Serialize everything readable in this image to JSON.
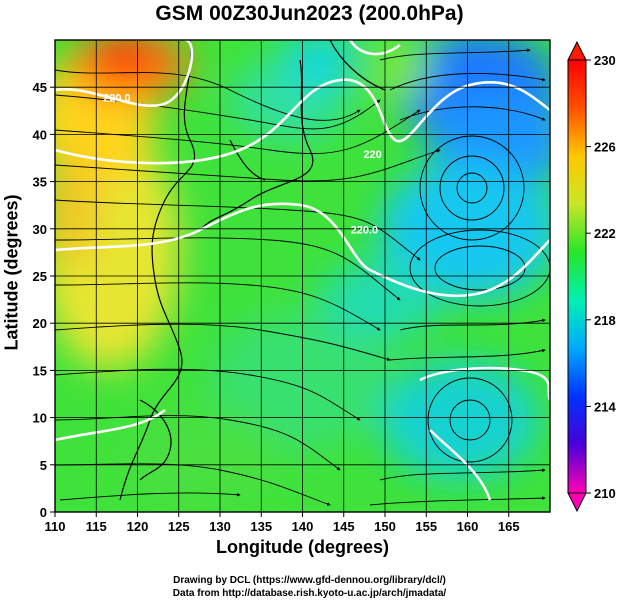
{
  "title": "GSM 00Z30Jun2023 (200.0hPa)",
  "credits": {
    "line1": "Drawing by DCL (https://www.gfd-dennou.org/library/dcl/)",
    "line2": "Data from http://database.rish.kyoto-u.ac.jp/arch/jmadata/"
  },
  "chart_data": {
    "type": "heatmap",
    "xlabel": "Longitude (degrees)",
    "ylabel": "Latitude  (degrees)",
    "xlim": [
      110,
      170
    ],
    "ylim": [
      0,
      50
    ],
    "x_ticks": [
      "110",
      "115",
      "120",
      "125",
      "130",
      "135",
      "140",
      "145",
      "150",
      "155",
      "160",
      "165"
    ],
    "y_ticks": [
      "0",
      "5",
      "10",
      "15",
      "20",
      "25",
      "30",
      "35",
      "40",
      "45"
    ],
    "grid": true,
    "colorbar": {
      "position": "right",
      "ticks": [
        "210",
        "214",
        "218",
        "222",
        "226",
        "230"
      ],
      "range": [
        210,
        230
      ],
      "colors": [
        "#ff00b4",
        "#4a00d8",
        "#0032ff",
        "#00a8ff",
        "#00f0b4",
        "#28e628",
        "#c8e628",
        "#ffc800",
        "#ff5000",
        "#ff0000"
      ]
    },
    "contour_labels": [
      {
        "text": "220.0",
        "lon": 117.5,
        "lat": 43.5
      },
      {
        "text": "220",
        "lon": 148.5,
        "lat": 37.5
      },
      {
        "text": "220.0",
        "lon": 147.5,
        "lat": 29.5
      }
    ],
    "features": {
      "warm_max": {
        "lon": 119,
        "lat": 49
      },
      "cold_low_north": {
        "lon": 162,
        "lat": 45
      },
      "anticyclone": {
        "lon": 162,
        "lat": 32
      },
      "cold_trough": {
        "lon": 150,
        "lat": 48
      },
      "south_cool": {
        "lon": 160,
        "lat": 10
      }
    }
  }
}
